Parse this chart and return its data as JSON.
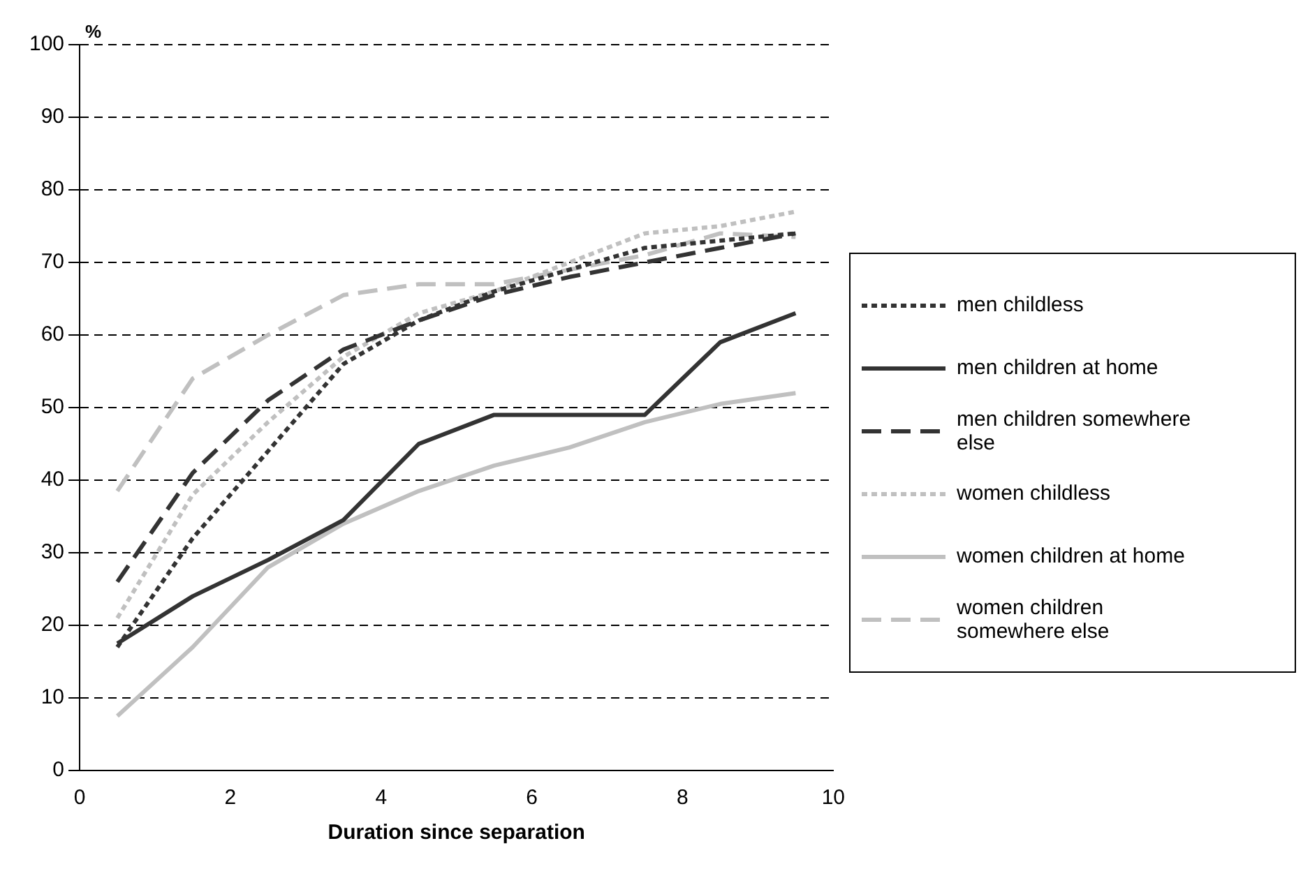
{
  "chart_data": {
    "type": "line",
    "xlabel": "Duration since separation",
    "ylabel": "%",
    "x": [
      0.5,
      1.5,
      2.5,
      3.5,
      4.5,
      5.5,
      6.5,
      7.5,
      8.5,
      9.5
    ],
    "xlim": [
      0,
      10
    ],
    "xticks": [
      0,
      2,
      4,
      6,
      8,
      10
    ],
    "ylim": [
      0,
      100
    ],
    "yticks": [
      0,
      10,
      20,
      30,
      40,
      50,
      60,
      70,
      80,
      90,
      100
    ],
    "grid": "y",
    "legend": "right",
    "marker": "none",
    "series": [
      {
        "name": "men childless",
        "color": "#333333",
        "line_style": "dotted",
        "values": [
          17,
          32,
          44,
          56,
          62,
          66,
          69,
          72,
          73,
          74
        ]
      },
      {
        "name": "men children at home",
        "color": "#333333",
        "line_style": "solid",
        "values": [
          17.5,
          24,
          29,
          34.5,
          45,
          49,
          49,
          49,
          59,
          63
        ]
      },
      {
        "name": "men children somewhere else",
        "color": "#333333",
        "line_style": "dashed",
        "values": [
          26,
          41,
          51,
          58,
          62,
          65.5,
          68,
          70,
          72,
          74
        ]
      },
      {
        "name": "women childless",
        "color": "#c0c0c0",
        "line_style": "dotted",
        "values": [
          21,
          38,
          48,
          57,
          63,
          66,
          70,
          74,
          75,
          77
        ]
      },
      {
        "name": "women children at home",
        "color": "#c0c0c0",
        "line_style": "solid",
        "values": [
          7.5,
          17,
          28,
          34,
          38.5,
          42,
          44.5,
          48,
          50.5,
          52
        ]
      },
      {
        "name": "women children somewhere else",
        "color": "#c0c0c0",
        "line_style": "dashed",
        "values": [
          38.5,
          54,
          60,
          65.5,
          67,
          67,
          69,
          71,
          74,
          73.5
        ]
      }
    ]
  }
}
